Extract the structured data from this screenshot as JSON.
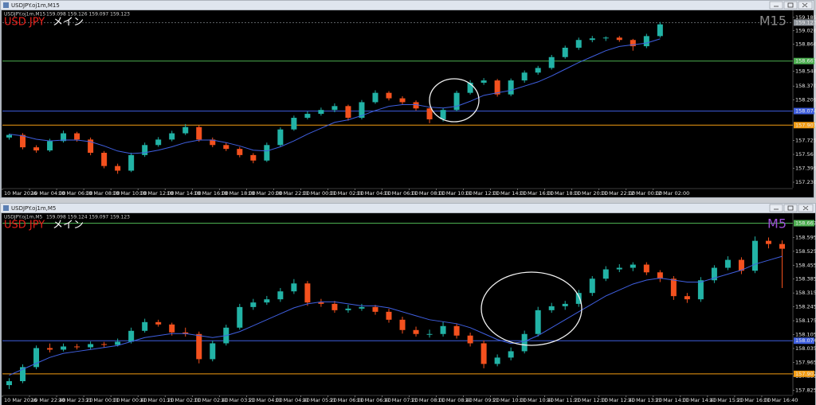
{
  "chart_data": [
    {
      "type": "candlestick",
      "window_title": "USDJPY.oj1m,M15",
      "ohlc_text": "159.098 159.126 159.097 159.123",
      "symbol": "USD JPY",
      "label": "メイン",
      "timeframe": "M15",
      "timeframe_color": "#8a8a8a",
      "up_color": "#22b3a6",
      "down_color": "#f4511e",
      "ma_color": "#3f5fe0",
      "ylim": [
        157.164,
        159.24
      ],
      "xlim": [
        0,
        58
      ],
      "yticks": [
        159.185,
        159.026,
        158.866,
        158.548,
        {
          "value": 158.37,
          "label": "158.370"
        },
        158.205,
        157.725,
        157.56,
        {
          "value": 157.395,
          "label": "157.395"
        },
        {
          "value": 157.23,
          "label": "157.230"
        }
      ],
      "xticks": [
        {
          "value": 0,
          "label": "10 Mar 2026"
        },
        {
          "value": 2,
          "label": "10 Mar 04:00"
        },
        {
          "value": 4,
          "label": "10 Mar 06:00"
        },
        {
          "value": 6,
          "label": "10 Mar 08:00"
        },
        {
          "value": 8,
          "label": "10 Mar 10:00"
        },
        {
          "value": 10,
          "label": "10 Mar 12:00"
        },
        {
          "value": 12,
          "label": "10 Mar 14:00"
        },
        {
          "value": 14,
          "label": "10 Mar 16:00"
        },
        {
          "value": 16,
          "label": "10 Mar 18:00"
        },
        {
          "value": 18,
          "label": "10 Mar 20:00"
        },
        {
          "value": 20,
          "label": "10 Mar 22:00"
        },
        {
          "value": 22,
          "label": "11 Mar 00:00"
        },
        {
          "value": 24,
          "label": "11 Mar 02:00"
        },
        {
          "value": 26,
          "label": "11 Mar 04:00"
        },
        {
          "value": 28,
          "label": "11 Mar 06:00"
        },
        {
          "value": 30,
          "label": "11 Mar 08:00"
        },
        {
          "value": 32,
          "label": "11 Mar 10:00"
        },
        {
          "value": 34,
          "label": "11 Mar 12:00"
        },
        {
          "value": 36,
          "label": "11 Mar 14:00"
        },
        {
          "value": 38,
          "label": "11 Mar 16:00"
        },
        {
          "value": 40,
          "label": "11 Mar 18:00"
        },
        {
          "value": 42,
          "label": "11 Mar 20:00"
        },
        {
          "value": 44,
          "label": "11 Mar 22:00"
        },
        {
          "value": 46,
          "label": "12 Mar 00:00"
        },
        {
          "value": 48,
          "label": "12 Mar 02:00"
        }
      ],
      "hlines": [
        {
          "value": 158.667,
          "color": "#4caf50"
        },
        {
          "value": 158.074,
          "color": "#3f5fe0"
        },
        {
          "value": 157.907,
          "color": "#f39c12"
        }
      ],
      "last_price": 159.123,
      "last_price_color": "#8f959c",
      "candles": [
        [
          157.76,
          157.805,
          157.735,
          157.791
        ],
        [
          157.791,
          157.812,
          157.62,
          157.644
        ],
        [
          157.644,
          157.668,
          157.58,
          157.607
        ],
        [
          157.607,
          157.745,
          157.59,
          157.718
        ],
        [
          157.718,
          157.842,
          157.7,
          157.81
        ],
        [
          157.81,
          157.828,
          157.71,
          157.736
        ],
        [
          157.736,
          157.76,
          157.55,
          157.579
        ],
        [
          157.579,
          157.6,
          157.395,
          157.422
        ],
        [
          157.422,
          157.45,
          157.33,
          157.367
        ],
        [
          157.367,
          157.58,
          157.35,
          157.552
        ],
        [
          157.552,
          157.7,
          157.53,
          157.671
        ],
        [
          157.671,
          157.765,
          157.65,
          157.736
        ],
        [
          157.736,
          157.84,
          157.715,
          157.81
        ],
        [
          157.81,
          157.92,
          157.79,
          157.884
        ],
        [
          157.884,
          157.905,
          157.71,
          157.736
        ],
        [
          157.736,
          157.76,
          157.645,
          157.671
        ],
        [
          157.671,
          157.7,
          157.6,
          157.625
        ],
        [
          157.625,
          157.648,
          157.525,
          157.552
        ],
        [
          157.552,
          157.575,
          157.455,
          157.487
        ],
        [
          157.487,
          157.7,
          157.47,
          157.671
        ],
        [
          157.671,
          157.88,
          157.65,
          157.856
        ],
        [
          157.856,
          158.02,
          157.84,
          157.994
        ],
        [
          157.994,
          158.07,
          157.975,
          158.041
        ],
        [
          158.041,
          158.115,
          158.02,
          158.087
        ],
        [
          158.087,
          158.165,
          158.06,
          158.133
        ],
        [
          158.133,
          158.15,
          157.96,
          157.994
        ],
        [
          157.994,
          158.205,
          157.975,
          158.179
        ],
        [
          158.179,
          158.32,
          158.16,
          158.29
        ],
        [
          158.29,
          158.31,
          158.2,
          158.225
        ],
        [
          158.225,
          158.25,
          158.15,
          158.179
        ],
        [
          158.179,
          158.2,
          158.08,
          158.105
        ],
        [
          158.105,
          158.125,
          157.93,
          157.976
        ],
        [
          157.976,
          158.11,
          157.95,
          158.087
        ],
        [
          158.087,
          158.315,
          158.07,
          158.29
        ],
        [
          158.29,
          158.44,
          158.27,
          158.41
        ],
        [
          158.41,
          158.465,
          158.385,
          158.437
        ],
        [
          158.437,
          158.455,
          158.245,
          158.271
        ],
        [
          158.271,
          158.46,
          158.25,
          158.437
        ],
        [
          158.437,
          158.555,
          158.41,
          158.53
        ],
        [
          158.53,
          158.61,
          158.505,
          158.585
        ],
        [
          158.585,
          158.74,
          158.565,
          158.714
        ],
        [
          158.714,
          158.85,
          158.695,
          158.825
        ],
        [
          158.825,
          158.945,
          158.8,
          158.917
        ],
        [
          158.917,
          158.965,
          158.89,
          158.936
        ],
        [
          158.936,
          158.96,
          158.905,
          158.945
        ],
        [
          158.945,
          158.965,
          158.895,
          158.917
        ],
        [
          158.917,
          158.93,
          158.79,
          158.843
        ],
        [
          158.843,
          158.99,
          158.82,
          158.963
        ],
        [
          158.963,
          159.13,
          158.945,
          159.102
        ]
      ],
      "ma": [
        157.8,
        157.78,
        157.74,
        157.72,
        157.73,
        157.73,
        157.71,
        157.66,
        157.6,
        157.57,
        157.58,
        157.61,
        157.65,
        157.7,
        157.73,
        157.73,
        157.7,
        157.66,
        157.61,
        157.6,
        157.65,
        157.72,
        157.8,
        157.87,
        157.94,
        157.97,
        158.02,
        158.08,
        158.13,
        158.15,
        158.15,
        158.12,
        158.11,
        158.13,
        158.19,
        158.26,
        158.29,
        158.32,
        158.37,
        158.42,
        158.49,
        158.57,
        158.65,
        158.72,
        158.79,
        158.84,
        158.86,
        158.88,
        158.93
      ]
    },
    {
      "type": "candlestick",
      "window_title": "USDJPY.oj1m,M5",
      "ohlc_text": "159.098 159.124 159.097 159.123",
      "symbol": "USD JPY",
      "label": "メイン",
      "timeframe": "M5",
      "timeframe_color": "#9b4fd6",
      "up_color": "#22b3a6",
      "down_color": "#f4511e",
      "ma_color": "#3f5fe0",
      "ylim": [
        157.802,
        158.685
      ],
      "xlim": [
        0,
        58
      ],
      "yticks": [
        158.595,
        158.525,
        158.455,
        158.385,
        158.315,
        158.245,
        158.175,
        158.105,
        158.035,
        157.965,
        157.895,
        157.825
      ],
      "xticks": [
        {
          "value": 0,
          "label": "10 Mar 2026"
        },
        {
          "value": 2,
          "label": "10 Mar 22:40"
        },
        {
          "value": 4,
          "label": "10 Mar 23:20"
        },
        {
          "value": 6,
          "label": "11 Mar 00:00"
        },
        {
          "value": 8,
          "label": "11 Mar 00:40"
        },
        {
          "value": 10,
          "label": "11 Mar 01:20"
        },
        {
          "value": 12,
          "label": "11 Mar 02:00"
        },
        {
          "value": 14,
          "label": "11 Mar 02:40"
        },
        {
          "value": 16,
          "label": "11 Mar 03:20"
        },
        {
          "value": 18,
          "label": "11 Mar 04:00"
        },
        {
          "value": 20,
          "label": "11 Mar 04:40"
        },
        {
          "value": 22,
          "label": "11 Mar 05:20"
        },
        {
          "value": 24,
          "label": "11 Mar 06:00"
        },
        {
          "value": 26,
          "label": "11 Mar 06:40"
        },
        {
          "value": 28,
          "label": "11 Mar 07:20"
        },
        {
          "value": 30,
          "label": "11 Mar 08:00"
        },
        {
          "value": 32,
          "label": "11 Mar 08:40"
        },
        {
          "value": 34,
          "label": "11 Mar 09:20"
        },
        {
          "value": 36,
          "label": "11 Mar 10:00"
        },
        {
          "value": 38,
          "label": "11 Mar 10:40"
        },
        {
          "value": 40,
          "label": "11 Mar 11:20"
        },
        {
          "value": 42,
          "label": "11 Mar 12:00"
        },
        {
          "value": 44,
          "label": "11 Mar 12:40"
        },
        {
          "value": 46,
          "label": "11 Mar 13:20"
        },
        {
          "value": 48,
          "label": "11 Mar 14:00"
        },
        {
          "value": 50,
          "label": "11 Mar 14:40"
        },
        {
          "value": 52,
          "label": "11 Mar 15:20"
        },
        {
          "value": 54,
          "label": "11 Mar 16:00"
        },
        {
          "value": 56,
          "label": "11 Mar 16:40"
        }
      ],
      "hlines": [
        {
          "value": 158.667,
          "color": "#4caf50"
        },
        {
          "value": 158.074,
          "color": "#3f5fe0"
        },
        {
          "value": 157.907,
          "color": "#f39c12"
        }
      ],
      "candles": [
        [
          157.85,
          157.885,
          157.83,
          157.87
        ],
        [
          157.87,
          157.955,
          157.86,
          157.941
        ],
        [
          157.941,
          158.05,
          157.93,
          158.037
        ],
        [
          158.037,
          158.06,
          158.015,
          158.029
        ],
        [
          158.029,
          158.06,
          158.02,
          158.045
        ],
        [
          158.045,
          158.058,
          158.03,
          158.041
        ],
        [
          158.041,
          158.07,
          158.03,
          158.057
        ],
        [
          158.057,
          158.068,
          158.04,
          158.053
        ],
        [
          158.053,
          158.085,
          158.045,
          158.069
        ],
        [
          158.069,
          158.14,
          158.06,
          158.124
        ],
        [
          158.124,
          158.185,
          158.115,
          158.168
        ],
        [
          158.168,
          158.18,
          158.145,
          158.156
        ],
        [
          158.156,
          158.165,
          158.1,
          158.116
        ],
        [
          158.116,
          158.14,
          158.095,
          158.108
        ],
        [
          158.108,
          158.12,
          157.96,
          157.981
        ],
        [
          157.981,
          158.075,
          157.97,
          158.061
        ],
        [
          158.061,
          158.155,
          158.05,
          158.14
        ],
        [
          158.14,
          158.26,
          158.13,
          158.244
        ],
        [
          158.244,
          158.285,
          158.23,
          158.267
        ],
        [
          158.267,
          158.3,
          158.255,
          158.283
        ],
        [
          158.283,
          158.34,
          158.27,
          158.323
        ],
        [
          158.323,
          158.385,
          158.31,
          158.363
        ],
        [
          158.363,
          158.375,
          158.25,
          158.267
        ],
        [
          158.267,
          158.285,
          158.245,
          158.26
        ],
        [
          158.26,
          158.275,
          158.215,
          158.228
        ],
        [
          158.228,
          158.255,
          158.215,
          158.236
        ],
        [
          158.236,
          158.26,
          158.225,
          158.244
        ],
        [
          158.244,
          158.255,
          158.205,
          158.22
        ],
        [
          158.22,
          158.235,
          158.165,
          158.18
        ],
        [
          158.18,
          158.195,
          158.11,
          158.128
        ],
        [
          158.128,
          158.145,
          158.095,
          158.108
        ],
        [
          158.108,
          158.13,
          158.09,
          158.108
        ],
        [
          158.108,
          158.17,
          158.095,
          158.148
        ],
        [
          158.148,
          158.16,
          158.085,
          158.1
        ],
        [
          158.1,
          158.115,
          158.045,
          158.061
        ],
        [
          158.061,
          158.075,
          157.935,
          157.957
        ],
        [
          157.957,
          158.005,
          157.945,
          157.989
        ],
        [
          157.989,
          158.04,
          157.975,
          158.021
        ],
        [
          158.021,
          158.125,
          158.01,
          158.108
        ],
        [
          158.108,
          158.245,
          158.095,
          158.228
        ],
        [
          158.228,
          158.265,
          158.215,
          158.248
        ],
        [
          158.248,
          158.275,
          158.23,
          158.26
        ],
        [
          158.26,
          158.33,
          158.245,
          158.315
        ],
        [
          158.315,
          158.4,
          158.3,
          158.387
        ],
        [
          158.387,
          158.45,
          158.375,
          158.434
        ],
        [
          158.434,
          158.46,
          158.42,
          158.442
        ],
        [
          158.442,
          158.47,
          158.425,
          158.458
        ],
        [
          158.458,
          158.47,
          158.405,
          158.419
        ],
        [
          158.419,
          158.43,
          158.37,
          158.387
        ],
        [
          158.387,
          158.4,
          158.28,
          158.299
        ],
        [
          158.299,
          158.315,
          158.265,
          158.283
        ],
        [
          158.283,
          158.395,
          158.27,
          158.379
        ],
        [
          158.379,
          158.455,
          158.365,
          158.442
        ],
        [
          158.442,
          158.5,
          158.43,
          158.482
        ],
        [
          158.482,
          158.495,
          158.41,
          158.427
        ],
        [
          158.427,
          158.6,
          158.415,
          158.578
        ],
        [
          158.578,
          158.595,
          158.54,
          158.562
        ],
        [
          158.562,
          158.58,
          158.34,
          158.538
        ]
      ],
      "ma": [
        157.9,
        157.93,
        157.96,
        157.99,
        158.01,
        158.02,
        158.03,
        158.04,
        158.05,
        158.07,
        158.09,
        158.1,
        158.11,
        158.11,
        158.1,
        158.09,
        158.1,
        158.12,
        158.15,
        158.18,
        158.21,
        158.24,
        158.26,
        158.27,
        158.27,
        158.26,
        158.25,
        158.25,
        158.24,
        158.22,
        158.2,
        158.18,
        158.17,
        158.16,
        158.14,
        158.11,
        158.08,
        158.06,
        158.07,
        158.1,
        158.14,
        158.18,
        158.22,
        158.26,
        158.3,
        158.33,
        158.36,
        158.38,
        158.39,
        158.38,
        158.37,
        158.37,
        158.39,
        158.41,
        158.43,
        158.46,
        158.48,
        158.5
      ]
    }
  ]
}
